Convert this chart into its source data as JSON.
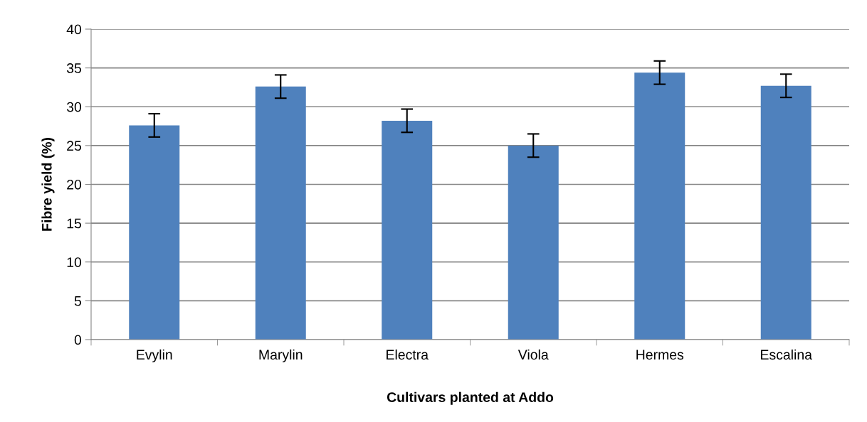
{
  "chart_data": {
    "type": "bar",
    "xlabel": "Cultivars planted at Addo",
    "ylabel": "Fibre yield (%)",
    "categories": [
      "Evylin",
      "Marylin",
      "Electra",
      "Viola",
      "Hermes",
      "Escalina"
    ],
    "values": [
      27.6,
      32.6,
      28.2,
      25.0,
      34.4,
      32.7
    ],
    "errors": [
      1.5,
      1.5,
      1.5,
      1.5,
      1.5,
      1.5
    ],
    "color": "#4f81bd",
    "ylim": [
      0,
      40
    ],
    "yticks": [
      0,
      5,
      10,
      15,
      20,
      25,
      30,
      35,
      40
    ],
    "grid": "y"
  }
}
